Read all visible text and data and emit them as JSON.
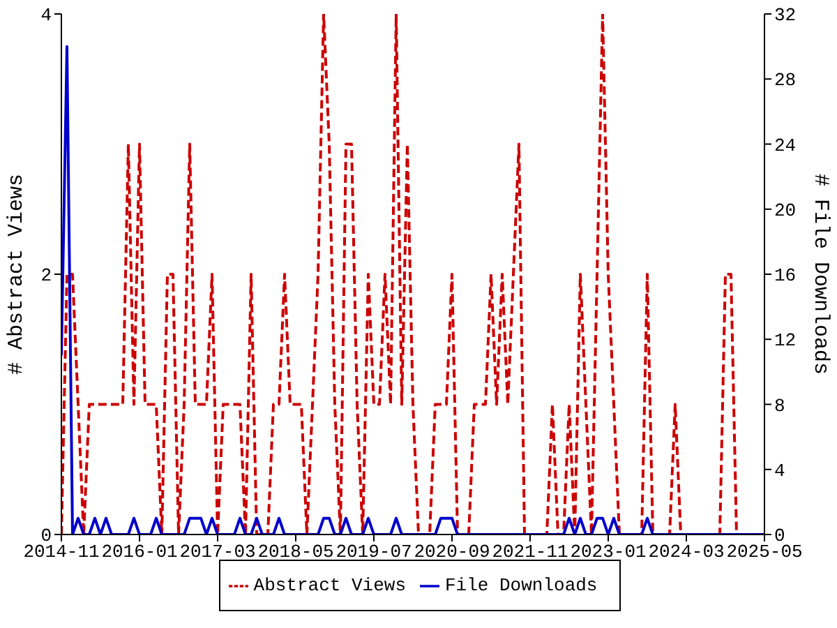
{
  "chart_data": {
    "type": "line",
    "xlabel": null,
    "ylabel": "# Abstract Views",
    "y2label": "# File Downloads",
    "x": [
      "2014-11",
      "2014-12",
      "2015-01",
      "2015-02",
      "2015-03",
      "2015-04",
      "2015-05",
      "2015-06",
      "2015-07",
      "2015-08",
      "2015-09",
      "2015-10",
      "2015-11",
      "2015-12",
      "2016-01",
      "2016-02",
      "2016-03",
      "2016-04",
      "2016-05",
      "2016-06",
      "2016-07",
      "2016-08",
      "2016-09",
      "2016-10",
      "2016-11",
      "2016-12",
      "2017-01",
      "2017-02",
      "2017-03",
      "2017-04",
      "2017-05",
      "2017-06",
      "2017-07",
      "2017-08",
      "2017-09",
      "2017-10",
      "2017-11",
      "2017-12",
      "2018-01",
      "2018-02",
      "2018-03",
      "2018-04",
      "2018-05",
      "2018-06",
      "2018-07",
      "2018-08",
      "2018-09",
      "2018-10",
      "2018-11",
      "2018-12",
      "2019-01",
      "2019-02",
      "2019-03",
      "2019-04",
      "2019-05",
      "2019-06",
      "2019-07",
      "2019-08",
      "2019-09",
      "2019-10",
      "2019-11",
      "2019-12",
      "2020-01",
      "2020-02",
      "2020-03",
      "2020-04",
      "2020-05",
      "2020-06",
      "2020-07",
      "2020-08",
      "2020-09",
      "2020-10",
      "2020-11",
      "2020-12",
      "2021-01",
      "2021-02",
      "2021-03",
      "2021-04",
      "2021-05",
      "2021-06",
      "2021-07",
      "2021-08",
      "2021-09",
      "2021-10",
      "2021-11",
      "2021-12",
      "2022-01",
      "2022-02",
      "2022-03",
      "2022-04",
      "2022-05",
      "2022-06",
      "2022-07",
      "2022-08",
      "2022-09",
      "2022-10",
      "2022-11",
      "2022-12",
      "2023-01",
      "2023-02",
      "2023-03",
      "2023-04",
      "2023-05",
      "2023-06",
      "2023-07",
      "2023-08",
      "2023-09",
      "2023-10",
      "2023-11",
      "2023-12",
      "2024-01",
      "2024-02",
      "2024-03",
      "2024-04",
      "2024-05",
      "2024-06",
      "2024-07",
      "2024-08",
      "2024-09",
      "2024-10",
      "2024-11",
      "2024-12",
      "2025-01",
      "2025-02",
      "2025-03",
      "2025-04",
      "2025-05"
    ],
    "xlim": [
      "2014-11",
      "2025-05"
    ],
    "xticks": [
      "2014-11",
      "2016-01",
      "2017-03",
      "2018-05",
      "2019-07",
      "2020-09",
      "2021-11",
      "2023-01",
      "2024-03",
      "2025-05"
    ],
    "ylim": [
      0,
      4
    ],
    "yticks": [
      0,
      2,
      4
    ],
    "y2lim": [
      0,
      32
    ],
    "y2ticks": [
      0,
      4,
      8,
      12,
      16,
      20,
      24,
      28,
      32
    ],
    "grid": false,
    "legend": "bottom",
    "marker": "none",
    "series": [
      {
        "name": "Abstract Views",
        "color": "#cc0000",
        "line_style": "dashed",
        "values": [
          0,
          2,
          2,
          1,
          0,
          1,
          1,
          1,
          1,
          1,
          1,
          1,
          3,
          1,
          3,
          1,
          1,
          1,
          0,
          2,
          2,
          0,
          1,
          3,
          1,
          1,
          1,
          2,
          0,
          1,
          1,
          1,
          1,
          0,
          2,
          0,
          0,
          0,
          1,
          1,
          2,
          1,
          1,
          1,
          0,
          1,
          2,
          4,
          3,
          1,
          0,
          3,
          3,
          1,
          0,
          2,
          1,
          1,
          2,
          1,
          4,
          1,
          3,
          1,
          0,
          0,
          0,
          1,
          1,
          1,
          2,
          0,
          0,
          0,
          1,
          1,
          1,
          2,
          1,
          2,
          1,
          2,
          3,
          0,
          0,
          0,
          0,
          0,
          1,
          0,
          0,
          1,
          0,
          2,
          1,
          0,
          2,
          4,
          2,
          1,
          0,
          0,
          0,
          0,
          0,
          2,
          0,
          0,
          0,
          0,
          1,
          0,
          0,
          0,
          0,
          0,
          0,
          0,
          0,
          2,
          2,
          0,
          0,
          0,
          0,
          null,
          null
        ]
      },
      {
        "name": "File Downloads",
        "color": "#0000cc",
        "line_style": "solid",
        "axis": "y2",
        "values": [
          11,
          30,
          0,
          1,
          0,
          0,
          1,
          0,
          1,
          0,
          0,
          0,
          0,
          1,
          0,
          0,
          0,
          1,
          0,
          0,
          0,
          0,
          0,
          1,
          1,
          1,
          0,
          1,
          0,
          0,
          0,
          0,
          1,
          0,
          0,
          1,
          0,
          0,
          0,
          1,
          0,
          0,
          0,
          0,
          0,
          0,
          0,
          1,
          1,
          0,
          0,
          1,
          0,
          0,
          0,
          1,
          0,
          0,
          0,
          0,
          1,
          0,
          0,
          0,
          0,
          0,
          0,
          0,
          1,
          1,
          1,
          0,
          0,
          0,
          0,
          0,
          0,
          0,
          0,
          0,
          0,
          0,
          0,
          0,
          0,
          0,
          0,
          0,
          0,
          0,
          0,
          1,
          0,
          1,
          0,
          0,
          1,
          1,
          0,
          1,
          0,
          0,
          0,
          0,
          0,
          1,
          0,
          0,
          0,
          0,
          0,
          0,
          0,
          0,
          0,
          0,
          0,
          0,
          0,
          0,
          0,
          0,
          0,
          0,
          0,
          0,
          0
        ]
      }
    ]
  }
}
